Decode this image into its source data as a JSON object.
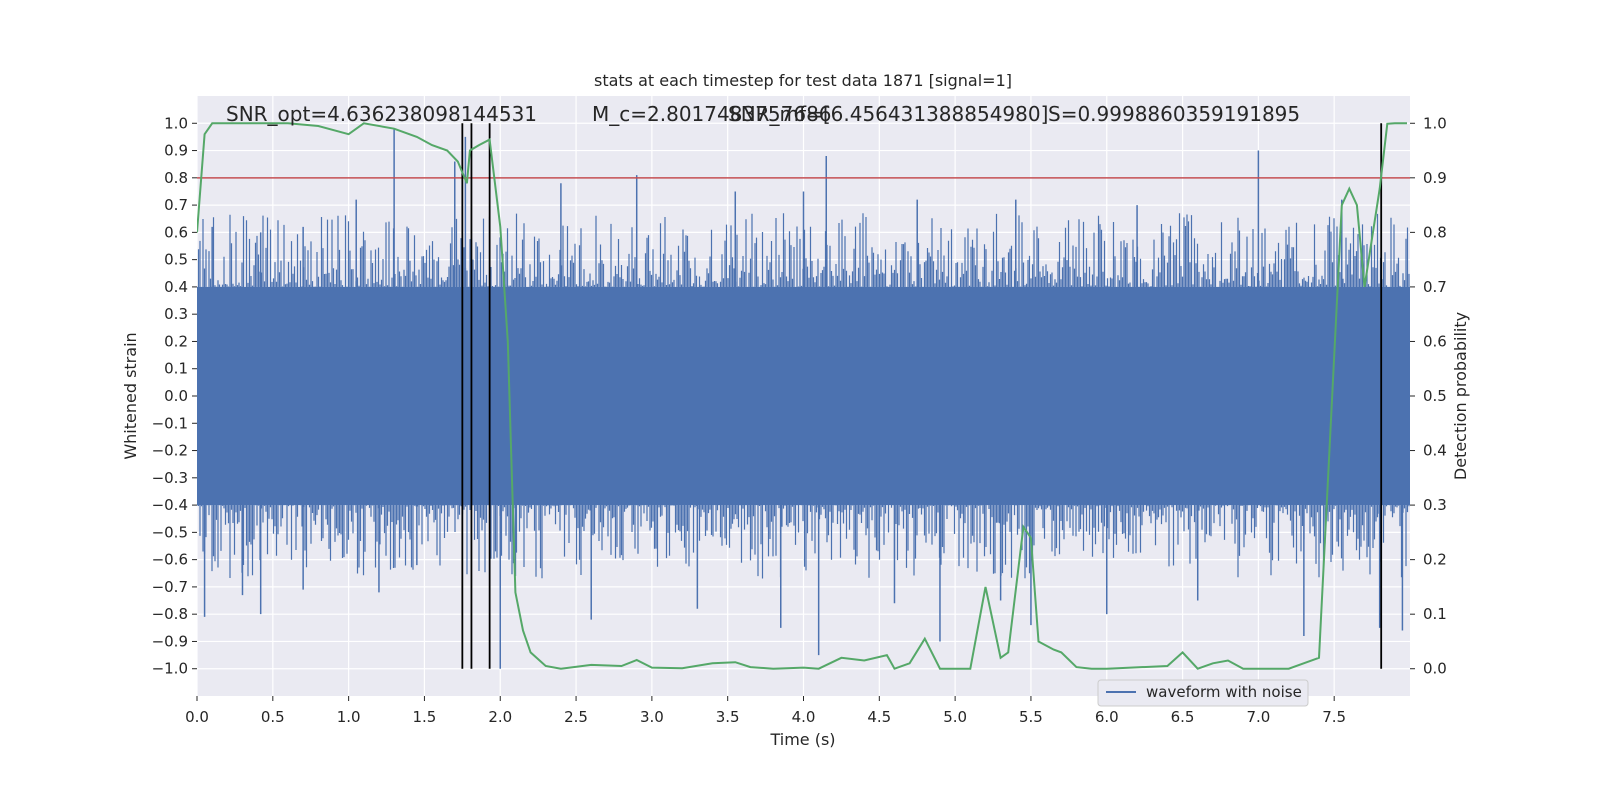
{
  "chart_data": {
    "type": "line",
    "title": "stats at each timestep for test data 1871 [signal=1]",
    "xlabel": "Time (s)",
    "ylabel": "Whitened strain",
    "y2label": "Detection probability",
    "xlim": [
      0.0,
      8.0
    ],
    "ylim": [
      -1.1,
      1.1
    ],
    "y2lim": [
      -0.05,
      1.05
    ],
    "xticks": [
      "0.0",
      "0.5",
      "1.0",
      "1.5",
      "2.0",
      "2.5",
      "3.0",
      "3.5",
      "4.0",
      "4.5",
      "5.0",
      "5.5",
      "6.0",
      "6.5",
      "7.0",
      "7.5"
    ],
    "yticks": [
      "1.0",
      "0.9",
      "0.8",
      "0.7",
      "0.6",
      "0.5",
      "0.4",
      "0.3",
      "0.2",
      "0.1",
      "0.0",
      "−0.1",
      "−0.2",
      "−0.3",
      "−0.4",
      "−0.5",
      "−0.6",
      "−0.7",
      "−0.8",
      "−0.9",
      "−1.0"
    ],
    "y2ticks": [
      "1.0",
      "0.9",
      "0.8",
      "0.7",
      "0.6",
      "0.5",
      "0.4",
      "0.3",
      "0.2",
      "0.1",
      "0.0"
    ],
    "grid": true,
    "legend_position": "lower-right",
    "annotations": [
      {
        "text": "SNR_opt=4.636238098144531"
      },
      {
        "text": "M_c=2.8017483757686"
      },
      {
        "text": "SNR_mf=[6.456431388854980]"
      },
      {
        "text": "S=0.9998860359191895"
      }
    ],
    "threshold": {
      "value": 0.8,
      "color": "#c44e52"
    },
    "event_lines_x": [
      1.75,
      1.81,
      1.93,
      7.81
    ],
    "series": [
      {
        "name": "waveform with noise",
        "color": "#4c72b0",
        "style": "noise-band",
        "core_amplitude": 0.4,
        "spikes": [
          {
            "x": 0.05,
            "y": -0.81
          },
          {
            "x": 0.1,
            "y": 0.62
          },
          {
            "x": 0.3,
            "y": -0.73
          },
          {
            "x": 0.42,
            "y": 0.6
          },
          {
            "x": 0.42,
            "y": -0.8
          },
          {
            "x": 0.7,
            "y": 0.62
          },
          {
            "x": 0.7,
            "y": -0.71
          },
          {
            "x": 1.05,
            "y": 0.72
          },
          {
            "x": 1.2,
            "y": -0.72
          },
          {
            "x": 1.3,
            "y": 0.98
          },
          {
            "x": 1.45,
            "y": -0.62
          },
          {
            "x": 1.7,
            "y": 0.86
          },
          {
            "x": 1.77,
            "y": 0.95
          },
          {
            "x": 2.0,
            "y": -1.0
          },
          {
            "x": 2.1,
            "y": -0.66
          },
          {
            "x": 2.4,
            "y": 0.78
          },
          {
            "x": 2.6,
            "y": -0.82
          },
          {
            "x": 2.9,
            "y": 0.81
          },
          {
            "x": 3.3,
            "y": -0.78
          },
          {
            "x": 3.55,
            "y": 0.75
          },
          {
            "x": 3.85,
            "y": -0.85
          },
          {
            "x": 4.0,
            "y": 0.75
          },
          {
            "x": 4.1,
            "y": -0.95
          },
          {
            "x": 4.15,
            "y": 0.88
          },
          {
            "x": 4.6,
            "y": -0.76
          },
          {
            "x": 4.75,
            "y": 0.72
          },
          {
            "x": 4.9,
            "y": -0.9
          },
          {
            "x": 5.3,
            "y": -0.75
          },
          {
            "x": 5.4,
            "y": 0.72
          },
          {
            "x": 5.5,
            "y": -0.84
          },
          {
            "x": 6.0,
            "y": -0.8
          },
          {
            "x": 6.2,
            "y": 0.7
          },
          {
            "x": 6.6,
            "y": -0.75
          },
          {
            "x": 7.0,
            "y": 0.9
          },
          {
            "x": 7.3,
            "y": -0.88
          },
          {
            "x": 7.55,
            "y": 0.72
          },
          {
            "x": 7.8,
            "y": -0.85
          },
          {
            "x": 7.95,
            "y": -0.86
          }
        ]
      },
      {
        "name": "Detection probability",
        "axis": "y2",
        "color": "#55a868",
        "x": [
          0.0,
          0.05,
          0.1,
          0.2,
          0.4,
          0.6,
          0.8,
          1.0,
          1.1,
          1.3,
          1.45,
          1.55,
          1.65,
          1.72,
          1.78,
          1.8,
          1.86,
          1.93,
          2.0,
          2.05,
          2.1,
          2.15,
          2.2,
          2.3,
          2.4,
          2.6,
          2.8,
          2.9,
          3.0,
          3.2,
          3.4,
          3.55,
          3.65,
          3.8,
          4.0,
          4.1,
          4.25,
          4.4,
          4.55,
          4.6,
          4.7,
          4.8,
          4.9,
          5.1,
          5.2,
          5.3,
          5.35,
          5.45,
          5.5,
          5.55,
          5.65,
          5.7,
          5.8,
          5.9,
          6.0,
          6.4,
          6.5,
          6.6,
          6.7,
          6.8,
          6.9,
          7.2,
          7.4,
          7.55,
          7.6,
          7.65,
          7.7,
          7.8,
          7.85,
          7.9,
          7.98
        ],
        "y": [
          0.8,
          0.98,
          1.0,
          1.0,
          1.0,
          1.0,
          0.995,
          0.98,
          1.0,
          0.99,
          0.975,
          0.96,
          0.95,
          0.93,
          0.89,
          0.95,
          0.96,
          0.97,
          0.81,
          0.6,
          0.14,
          0.07,
          0.03,
          0.005,
          0.0,
          0.007,
          0.005,
          0.016,
          0.002,
          0.001,
          0.01,
          0.012,
          0.003,
          0.0,
          0.002,
          0.0,
          0.02,
          0.015,
          0.025,
          0.0,
          0.01,
          0.055,
          0.0,
          0.0,
          0.15,
          0.02,
          0.03,
          0.26,
          0.24,
          0.05,
          0.035,
          0.03,
          0.003,
          0.0,
          0.0,
          0.005,
          0.03,
          0.0,
          0.01,
          0.015,
          0.0,
          0.0,
          0.02,
          0.85,
          0.88,
          0.85,
          0.7,
          0.88,
          0.999,
          1.0,
          1.0
        ]
      }
    ]
  }
}
